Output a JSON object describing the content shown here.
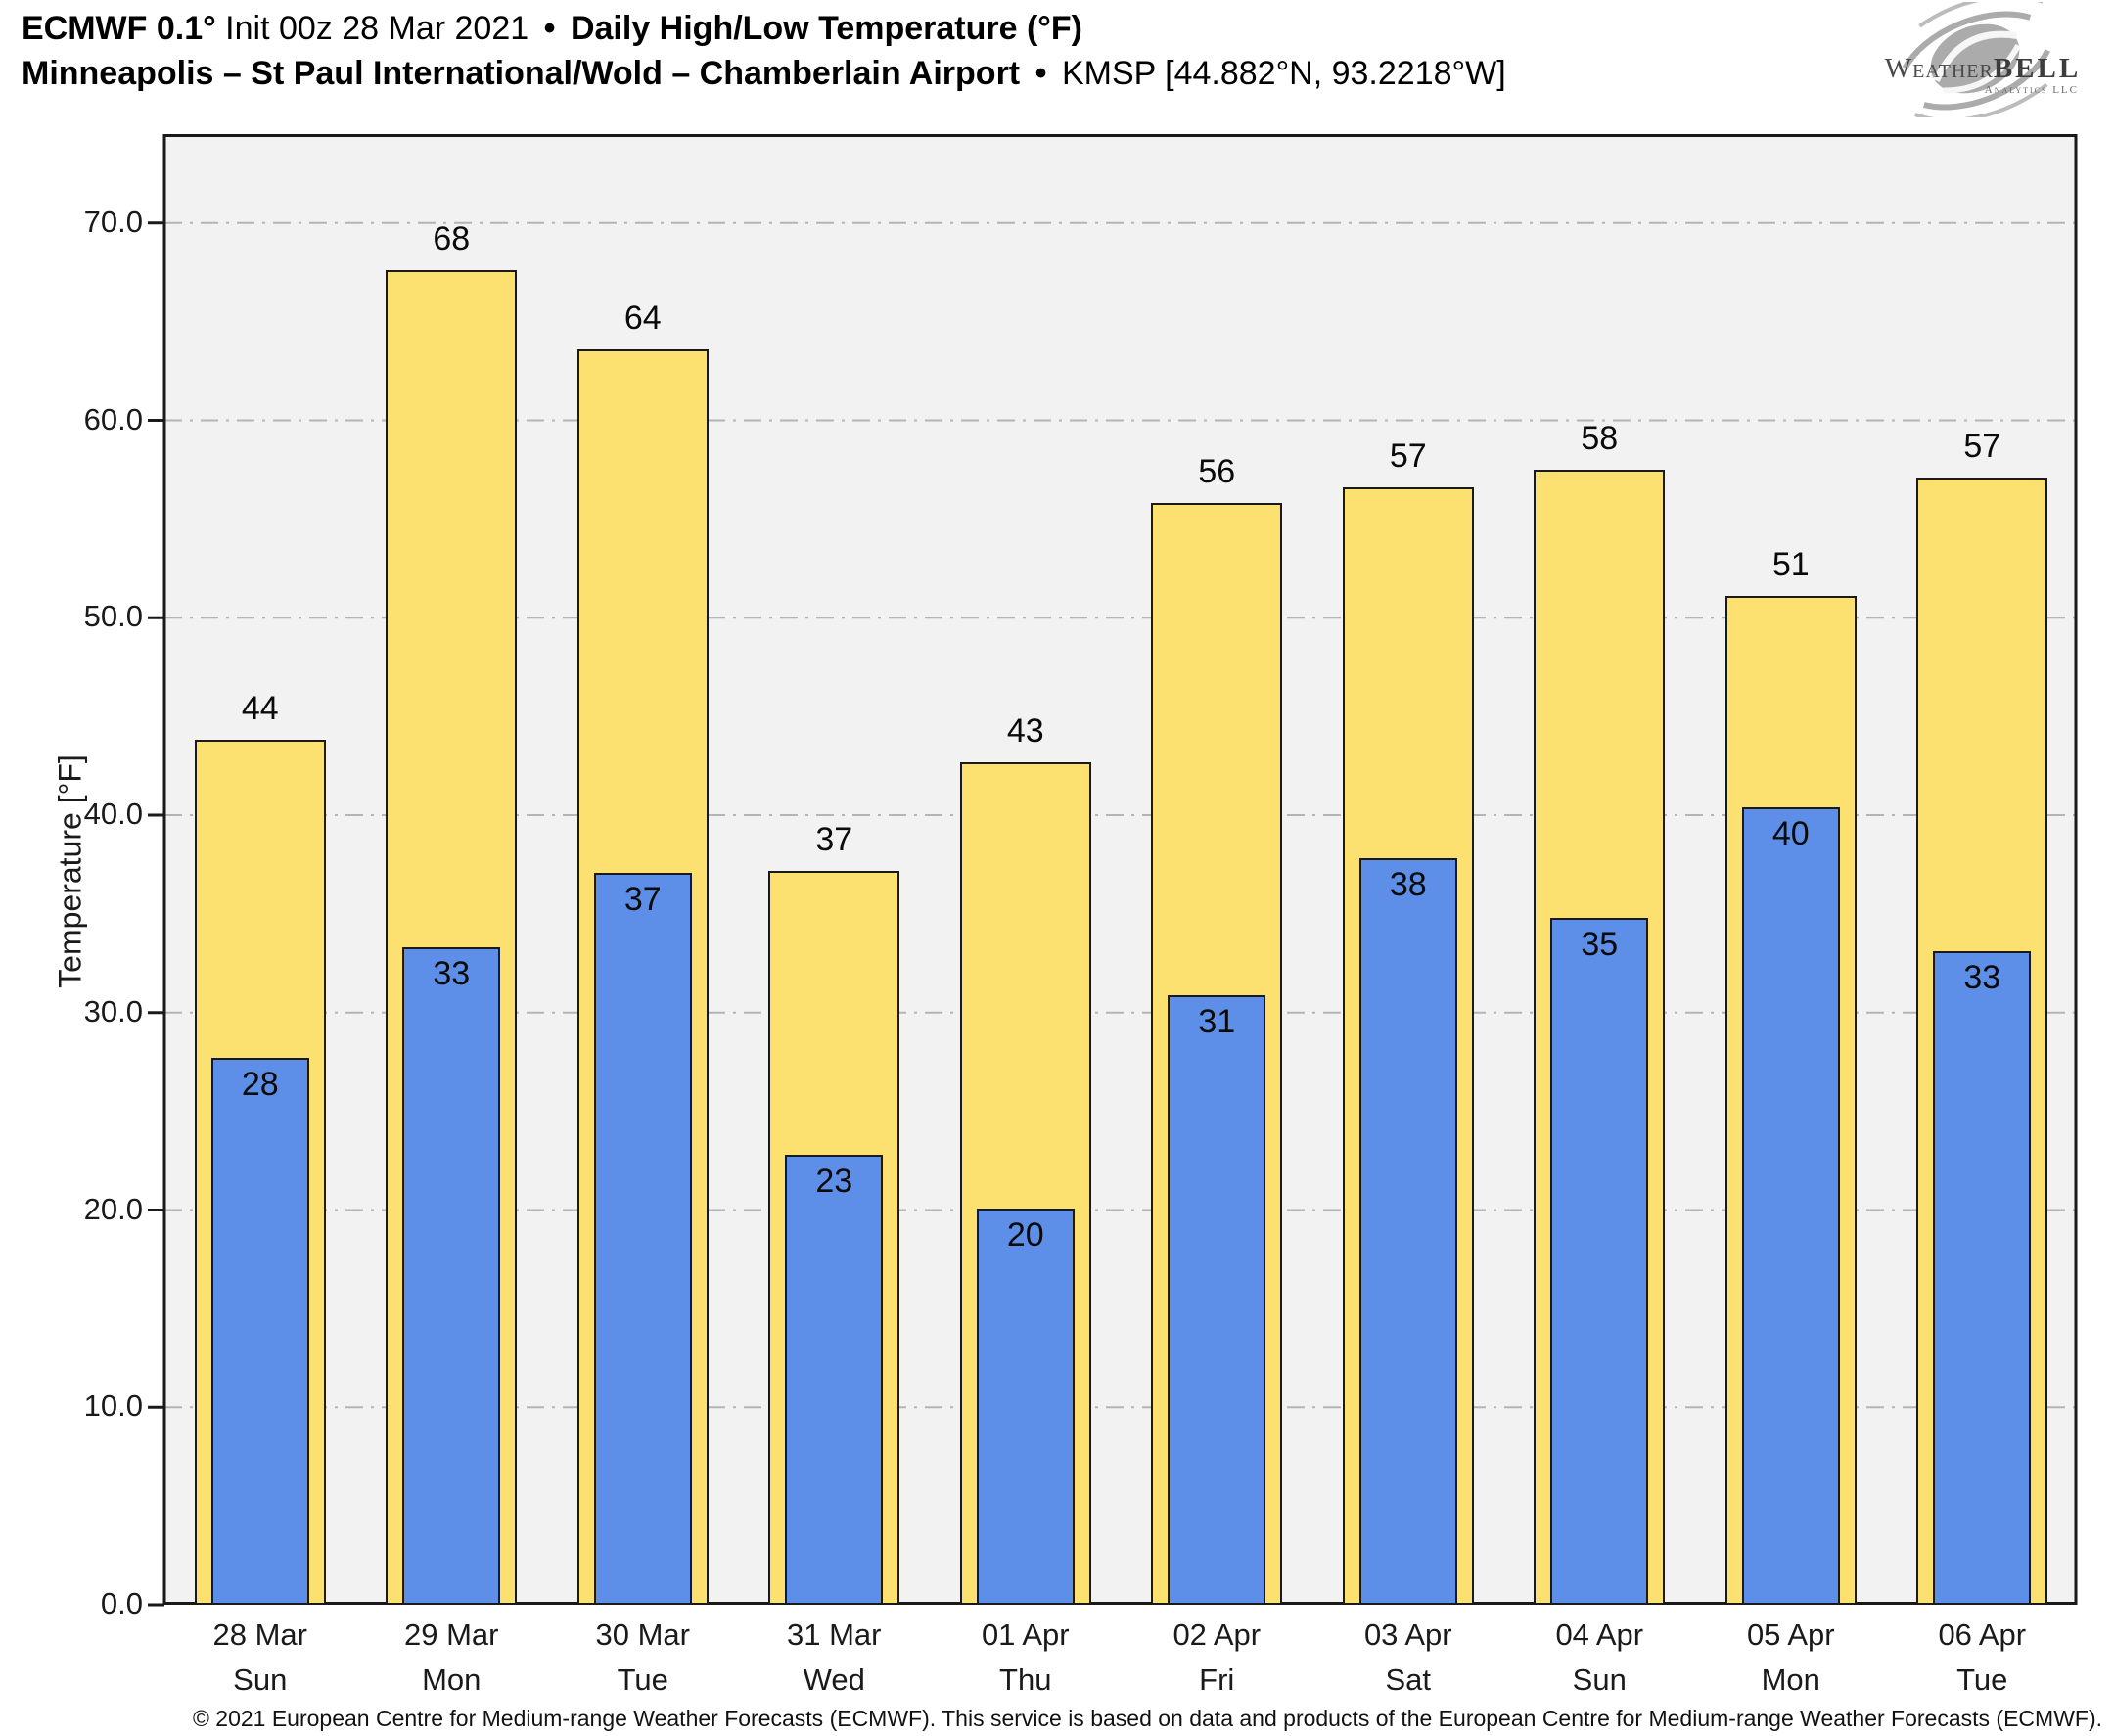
{
  "header": {
    "title_model": "ECMWF 0.1°",
    "title_init": " Init 00z 28 Mar 2021 ",
    "title_sep": "•",
    "title_metric": " Daily High/Low Temperature (°F)",
    "station_name": "Minneapolis – St Paul International/Wold – Chamberlain Airport ",
    "station_sep": "•",
    "station_id": " KMSP [44.882°N, 93.2218°W]"
  },
  "logo": {
    "brand_weather": "Weather",
    "brand_bell": "BELL",
    "brand_sub": "Analytics LLC"
  },
  "chart_data": {
    "type": "bar",
    "title": "Daily High/Low Temperature (°F)",
    "xlabel": "",
    "ylabel": "Temperature [°F]",
    "ylim": [
      0,
      74.5
    ],
    "yticks": [
      0,
      10,
      20,
      30,
      40,
      50,
      60,
      70
    ],
    "ytick_labels": [
      "0.0",
      "10.0",
      "20.0",
      "30.0",
      "40.0",
      "50.0",
      "60.0",
      "70.0"
    ],
    "grid": "horizontal dash-dot at major ticks",
    "legend_position": "none",
    "categories": [
      {
        "date": "28 Mar",
        "day": "Sun"
      },
      {
        "date": "29 Mar",
        "day": "Mon"
      },
      {
        "date": "30 Mar",
        "day": "Tue"
      },
      {
        "date": "31 Mar",
        "day": "Wed"
      },
      {
        "date": "01 Apr",
        "day": "Thu"
      },
      {
        "date": "02 Apr",
        "day": "Fri"
      },
      {
        "date": "03 Apr",
        "day": "Sat"
      },
      {
        "date": "04 Apr",
        "day": "Sun"
      },
      {
        "date": "05 Apr",
        "day": "Mon"
      },
      {
        "date": "06 Apr",
        "day": "Tue"
      }
    ],
    "series": [
      {
        "name": "Daily High",
        "color": "#fce170",
        "values": [
          43.8,
          67.6,
          63.6,
          37.2,
          42.7,
          55.8,
          56.6,
          57.5,
          51.1,
          57.1
        ],
        "labels": [
          "44",
          "68",
          "64",
          "37",
          "43",
          "56",
          "57",
          "58",
          "51",
          "57"
        ]
      },
      {
        "name": "Daily Low",
        "color": "#5e8fe8",
        "values": [
          27.7,
          33.3,
          37.1,
          22.8,
          20.1,
          30.9,
          37.8,
          34.8,
          40.4,
          33.1
        ],
        "labels": [
          "28",
          "33",
          "37",
          "23",
          "20",
          "31",
          "38",
          "35",
          "40",
          "33"
        ]
      }
    ],
    "colors": {
      "plot_bg": "#f2f2f2",
      "grid": "#b4b4b4",
      "spine": "#1a1a1a",
      "bar_outline": "#1a1a1a"
    }
  },
  "footer": {
    "text": "© 2021 European Centre for Medium-range Weather Forecasts (ECMWF). This service is based on data and products of the European Centre for Medium-range Weather Forecasts (ECMWF)."
  }
}
